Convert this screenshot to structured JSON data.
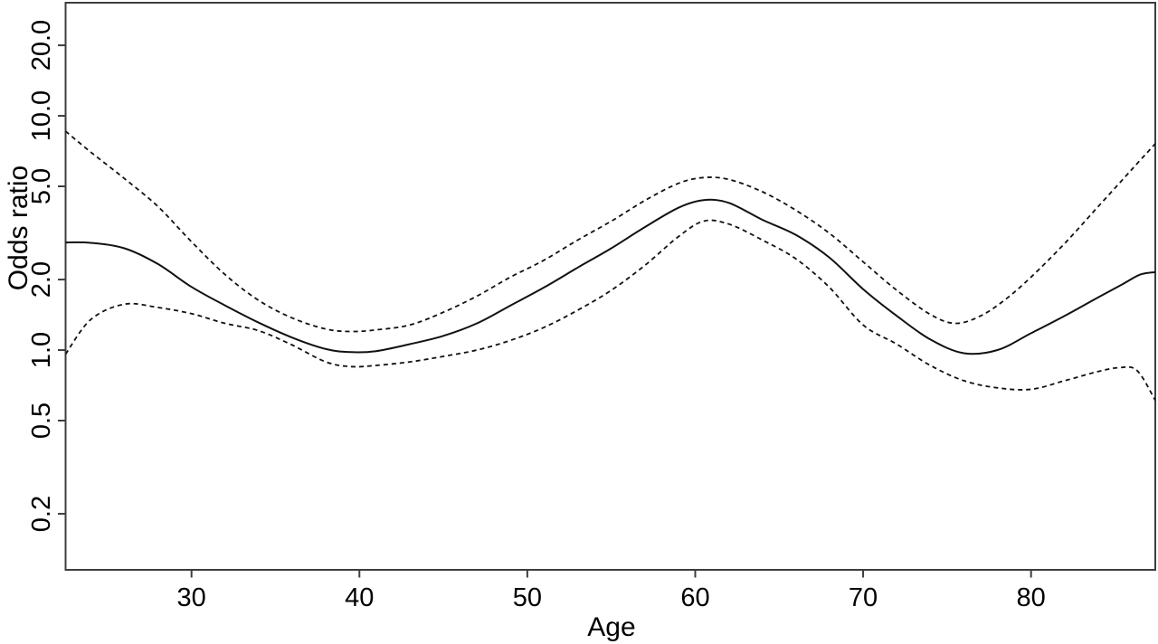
{
  "figure": {
    "background": "#ffffff",
    "axis_color": "#3d3d3d",
    "curve_color": "#111111",
    "text_color": "#000000"
  },
  "chart_data": {
    "type": "line",
    "title": "",
    "xlabel": "Age",
    "ylabel": "Odds ratio",
    "grid": false,
    "legend": "none",
    "x_axis": {
      "range": [
        22.5,
        87.4
      ],
      "ticks": [
        30,
        40,
        50,
        60,
        70,
        80
      ],
      "tick_labels": [
        "30",
        "40",
        "50",
        "60",
        "70",
        "80"
      ]
    },
    "y_axis": {
      "scale": "log",
      "range": [
        0.1153,
        30.4
      ],
      "ticks": [
        0.2,
        0.5,
        1.0,
        2.0,
        5.0,
        10.0,
        20.0
      ],
      "tick_labels": [
        "0.2",
        "0.5",
        "1.0",
        "2.0",
        "5.0",
        "10.0",
        "20.0"
      ]
    },
    "series": [
      {
        "name": "odds-ratio-estimate",
        "style": "solid",
        "points": [
          [
            22.5,
            2.88
          ],
          [
            24,
            2.87
          ],
          [
            26,
            2.72
          ],
          [
            28,
            2.33
          ],
          [
            30,
            1.86
          ],
          [
            32,
            1.55
          ],
          [
            34,
            1.31
          ],
          [
            36,
            1.13
          ],
          [
            38,
            1.01
          ],
          [
            39.5,
            0.98
          ],
          [
            41,
            0.99
          ],
          [
            43,
            1.06
          ],
          [
            45,
            1.15
          ],
          [
            47,
            1.3
          ],
          [
            49,
            1.55
          ],
          [
            51,
            1.85
          ],
          [
            53,
            2.25
          ],
          [
            55,
            2.72
          ],
          [
            57,
            3.35
          ],
          [
            59,
            4.05
          ],
          [
            60.5,
            4.37
          ],
          [
            62,
            4.25
          ],
          [
            64,
            3.6
          ],
          [
            66,
            3.1
          ],
          [
            68,
            2.48
          ],
          [
            70,
            1.82
          ],
          [
            72,
            1.4
          ],
          [
            74,
            1.11
          ],
          [
            76,
            0.97
          ],
          [
            78,
            1.0
          ],
          [
            80,
            1.18
          ],
          [
            82,
            1.4
          ],
          [
            84,
            1.68
          ],
          [
            85.5,
            1.92
          ],
          [
            86.5,
            2.1
          ],
          [
            87.4,
            2.15
          ]
        ]
      },
      {
        "name": "ci-upper",
        "style": "dashed",
        "points": [
          [
            22.5,
            8.6
          ],
          [
            24,
            7.0
          ],
          [
            26,
            5.4
          ],
          [
            28,
            4.1
          ],
          [
            30,
            2.9
          ],
          [
            32,
            2.1
          ],
          [
            34,
            1.63
          ],
          [
            36,
            1.37
          ],
          [
            38,
            1.23
          ],
          [
            39.5,
            1.2
          ],
          [
            41,
            1.22
          ],
          [
            43,
            1.28
          ],
          [
            45,
            1.45
          ],
          [
            47,
            1.7
          ],
          [
            49,
            2.05
          ],
          [
            51,
            2.42
          ],
          [
            53,
            2.95
          ],
          [
            55,
            3.55
          ],
          [
            57,
            4.35
          ],
          [
            59,
            5.15
          ],
          [
            60.5,
            5.45
          ],
          [
            62,
            5.35
          ],
          [
            64,
            4.74
          ],
          [
            66,
            3.95
          ],
          [
            68,
            3.15
          ],
          [
            70,
            2.38
          ],
          [
            72,
            1.8
          ],
          [
            74,
            1.42
          ],
          [
            75.5,
            1.3
          ],
          [
            77,
            1.4
          ],
          [
            78.5,
            1.65
          ],
          [
            80,
            2.05
          ],
          [
            82,
            2.85
          ],
          [
            84,
            4.1
          ],
          [
            86,
            5.9
          ],
          [
            87.4,
            7.6
          ]
        ]
      },
      {
        "name": "ci-lower",
        "style": "dashed",
        "points": [
          [
            22.5,
            0.96
          ],
          [
            24,
            1.35
          ],
          [
            26,
            1.57
          ],
          [
            28,
            1.52
          ],
          [
            30,
            1.43
          ],
          [
            32,
            1.3
          ],
          [
            34,
            1.21
          ],
          [
            36,
            1.05
          ],
          [
            38,
            0.89
          ],
          [
            39.5,
            0.85
          ],
          [
            41,
            0.86
          ],
          [
            43,
            0.89
          ],
          [
            45,
            0.94
          ],
          [
            47,
            1.0
          ],
          [
            49,
            1.1
          ],
          [
            51,
            1.25
          ],
          [
            53,
            1.48
          ],
          [
            55,
            1.8
          ],
          [
            57,
            2.3
          ],
          [
            59,
            3.05
          ],
          [
            60.5,
            3.55
          ],
          [
            62,
            3.45
          ],
          [
            64,
            2.95
          ],
          [
            66,
            2.45
          ],
          [
            68,
            1.85
          ],
          [
            70,
            1.28
          ],
          [
            72,
            1.06
          ],
          [
            74,
            0.86
          ],
          [
            76,
            0.74
          ],
          [
            78,
            0.69
          ],
          [
            80,
            0.68
          ],
          [
            82,
            0.74
          ],
          [
            84,
            0.81
          ],
          [
            85.2,
            0.84
          ],
          [
            86.3,
            0.82
          ],
          [
            87.4,
            0.61
          ]
        ]
      }
    ]
  }
}
